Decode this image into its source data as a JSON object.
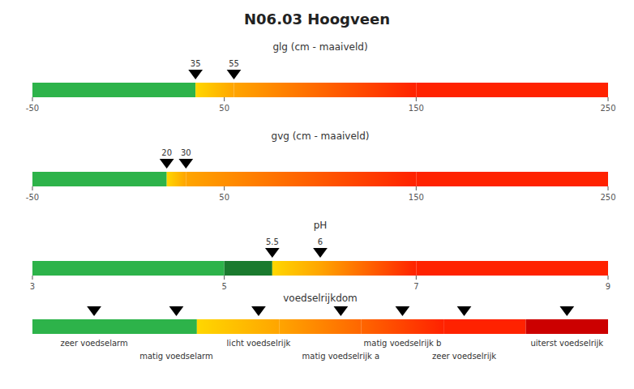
{
  "chart_data": [
    {
      "type": "gradient_bar",
      "title": "N06.03 Hoogveen",
      "xlabel": "glg (cm - maaiveld)",
      "xlim": [
        -50,
        250
      ],
      "xticks": [
        -50,
        50,
        150,
        250
      ],
      "segments": [
        {
          "x0": -50,
          "x1": 35,
          "color_left": "#2db34a",
          "color_right": "#2db34a"
        },
        {
          "x0": 35,
          "x1": 55,
          "color_left": "#ffd700",
          "color_right": "#ffa500"
        },
        {
          "x0": 55,
          "x1": 150,
          "color_left": "#ffa500",
          "color_right": "#ff2200"
        },
        {
          "x0": 150,
          "x1": 250,
          "color_left": "#ff2200",
          "color_right": "#ff2200"
        }
      ],
      "markers": {
        "x": [
          35,
          55
        ],
        "color": "#000000"
      },
      "data_labels": true
    },
    {
      "type": "gradient_bar",
      "xlabel": "gvg (cm - maaiveld)",
      "xlim": [
        -50,
        250
      ],
      "xticks": [
        -50,
        50,
        150,
        250
      ],
      "segments": [
        {
          "x0": -50,
          "x1": 20,
          "color_left": "#2db34a",
          "color_right": "#2db34a"
        },
        {
          "x0": 20,
          "x1": 30,
          "color_left": "#ffd700",
          "color_right": "#ffa500"
        },
        {
          "x0": 30,
          "x1": 150,
          "color_left": "#ffa500",
          "color_right": "#ff2200"
        },
        {
          "x0": 150,
          "x1": 250,
          "color_left": "#ff2200",
          "color_right": "#ff2200"
        }
      ],
      "markers": {
        "x": [
          20,
          30
        ],
        "color": "#000000"
      },
      "data_labels": true
    },
    {
      "type": "gradient_bar",
      "xlabel": "pH",
      "xlim": [
        3,
        9
      ],
      "xticks": [
        3,
        5,
        7,
        9
      ],
      "segments": [
        {
          "x0": 3,
          "x1": 5,
          "color_left": "#2db34a",
          "color_right": "#2db34a"
        },
        {
          "x0": 5,
          "x1": 5.5,
          "color_left": "#1a7a2e",
          "color_right": "#1a7a2e"
        },
        {
          "x0": 5.5,
          "x1": 6,
          "color_left": "#ffd700",
          "color_right": "#ffa500"
        },
        {
          "x0": 6,
          "x1": 7,
          "color_left": "#ffa500",
          "color_right": "#ff2200"
        },
        {
          "x0": 7,
          "x1": 9,
          "color_left": "#ff2200",
          "color_right": "#ff2200"
        }
      ],
      "markers": {
        "x": [
          5.5,
          6
        ],
        "color": "#000000"
      },
      "data_labels": true
    },
    {
      "type": "gradient_bar",
      "xlabel": "voedselrijkdom",
      "xlim": [
        0,
        7
      ],
      "xticks": [],
      "tick_labels": false,
      "segments": [
        {
          "x0": 0,
          "x1": 2,
          "color_left": "#2db34a",
          "color_right": "#2db34a"
        },
        {
          "x0": 2,
          "x1": 3,
          "color_left": "#ffd700",
          "color_right": "#ffa500"
        },
        {
          "x0": 3,
          "x1": 4,
          "color_left": "#ffa500",
          "color_right": "#ff6600"
        },
        {
          "x0": 4,
          "x1": 5,
          "color_left": "#ff6600",
          "color_right": "#ff2200"
        },
        {
          "x0": 5,
          "x1": 6,
          "color_left": "#ff2200",
          "color_right": "#ff2200"
        },
        {
          "x0": 6,
          "x1": 7,
          "color_left": "#cc0000",
          "color_right": "#cc0000"
        }
      ],
      "markers": {
        "x": [
          0.75,
          1.75,
          2.75,
          3.75,
          4.5,
          5.25,
          6.5
        ],
        "labels": [
          "zeer voedselarm",
          "matig voedselarm",
          "licht voedselrijk",
          "matig voedselrijk a",
          "matig voedselrijk b",
          "zeer voedselrijk",
          "uiterst voedselrijk"
        ],
        "color": "#000000"
      },
      "data_labels": true
    }
  ]
}
